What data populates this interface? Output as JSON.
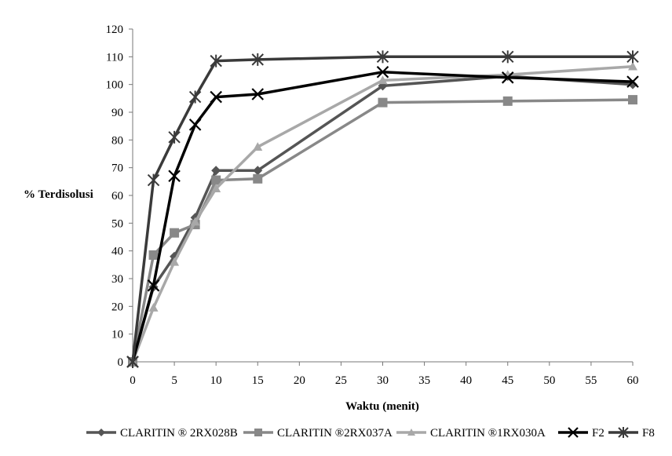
{
  "chart_data": {
    "type": "line",
    "xlabel": "Waktu (menit)",
    "ylabel": "% Terdisolusi",
    "xlim": [
      0,
      60
    ],
    "ylim": [
      0,
      120
    ],
    "xticks": [
      0,
      5,
      10,
      15,
      20,
      25,
      30,
      35,
      40,
      45,
      50,
      55,
      60
    ],
    "yticks": [
      0,
      10,
      20,
      30,
      40,
      50,
      60,
      70,
      80,
      90,
      100,
      110,
      120
    ],
    "grid": false,
    "legend_position": "bottom",
    "series": [
      {
        "name": "CLARITIN ® 2RX028B",
        "color": "#555555",
        "marker": "diamond",
        "x": [
          0,
          2.5,
          5,
          7.5,
          10,
          15,
          30,
          45,
          60
        ],
        "y": [
          0,
          27,
          38,
          52,
          69,
          69,
          99.5,
          103,
          100
        ]
      },
      {
        "name": "CLARITIN ®2RX037A",
        "color": "#888888",
        "marker": "square",
        "x": [
          0,
          2.5,
          5,
          7.5,
          10,
          15,
          30,
          45,
          60
        ],
        "y": [
          0,
          38.5,
          46.5,
          49.5,
          65.5,
          66,
          93.5,
          94,
          94.5
        ]
      },
      {
        "name": "CLARITIN ®1RX030A",
        "color": "#a8a8a8",
        "marker": "triangle",
        "x": [
          0,
          2.5,
          5,
          7.5,
          10,
          15,
          30,
          45,
          60
        ],
        "y": [
          0,
          19.5,
          36,
          50.5,
          62.5,
          77.5,
          101.5,
          103.5,
          106.5
        ]
      },
      {
        "name": "F2",
        "color": "#000000",
        "marker": "x",
        "x": [
          0,
          2.5,
          5,
          7.5,
          10,
          15,
          30,
          45,
          60
        ],
        "y": [
          0,
          27.5,
          67,
          85.5,
          95.5,
          96.5,
          104.5,
          102.5,
          101
        ]
      },
      {
        "name": "F8",
        "color": "#3a3a3a",
        "marker": "star",
        "x": [
          0,
          2.5,
          5,
          7.5,
          10,
          15,
          30,
          45,
          60
        ],
        "y": [
          0,
          65.5,
          81,
          95.5,
          108.5,
          109,
          110,
          110,
          110
        ]
      }
    ]
  }
}
